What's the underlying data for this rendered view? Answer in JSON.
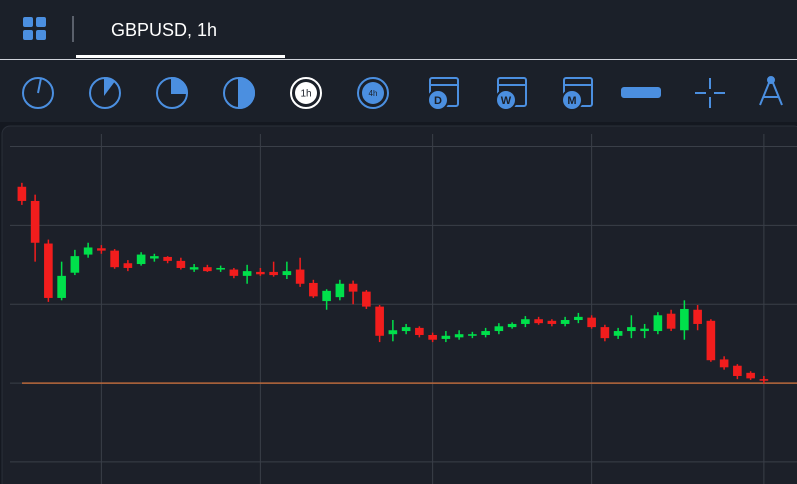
{
  "tab": {
    "title": "GBPUSD, 1h"
  },
  "toolbar": {
    "labels": [
      "1h",
      "4h",
      "D",
      "W",
      "M"
    ]
  },
  "chart_data": {
    "type": "candlestick",
    "up_color": "#00e04b",
    "down_color": "#f21d1d",
    "grid": true,
    "grid_color": "#3a3f48",
    "last_price": 1.25,
    "last_price_color": "#b8683c",
    "xlim": [
      -1.5,
      58.5
    ],
    "xticks": [
      6,
      18,
      31,
      43,
      56
    ],
    "ylim": [
      1.24872,
      1.25321
    ],
    "yticks": [
      1.249,
      1.25,
      1.251,
      1.252,
      1.253
    ],
    "open": [
      1.25249,
      1.25231,
      1.25177,
      1.25108,
      1.2514,
      1.25163,
      1.25171,
      1.25168,
      1.25152,
      1.25151,
      1.25158,
      1.2516,
      1.25155,
      1.25144,
      1.25147,
      1.25144,
      1.25144,
      1.25136,
      1.25141,
      1.25141,
      1.25137,
      1.25144,
      1.25127,
      1.25104,
      1.25109,
      1.25126,
      1.25116,
      1.25097,
      1.25062,
      1.25066,
      1.2507,
      1.25061,
      1.25056,
      1.25058,
      1.2506,
      1.25061,
      1.25066,
      1.25071,
      1.25075,
      1.25081,
      1.25079,
      1.25075,
      1.2508,
      1.25083,
      1.25071,
      1.2506,
      1.25066,
      1.25066,
      1.25066,
      1.25088,
      1.25067,
      1.25093,
      1.25079,
      1.2503,
      1.25022,
      1.25013,
      1.25005
    ],
    "high": [
      1.25254,
      1.25239,
      1.25182,
      1.25154,
      1.25169,
      1.25178,
      1.25175,
      1.2517,
      1.25156,
      1.25166,
      1.25164,
      1.25161,
      1.25159,
      1.25151,
      1.2515,
      1.25149,
      1.25146,
      1.2515,
      1.25146,
      1.25154,
      1.25154,
      1.25159,
      1.25131,
      1.25119,
      1.25131,
      1.2513,
      1.25118,
      1.25099,
      1.2508,
      1.25075,
      1.25072,
      1.25064,
      1.25066,
      1.25067,
      1.25065,
      1.2507,
      1.25076,
      1.25077,
      1.25085,
      1.25084,
      1.25081,
      1.25084,
      1.25089,
      1.25086,
      1.25074,
      1.2507,
      1.25086,
      1.25075,
      1.2509,
      1.25093,
      1.25105,
      1.25099,
      1.25081,
      1.25034,
      1.25024,
      1.25015,
      1.25009
    ],
    "low": [
      1.25226,
      1.25154,
      1.25103,
      1.25105,
      1.25137,
      1.25159,
      1.25164,
      1.25145,
      1.25142,
      1.25149,
      1.25154,
      1.25152,
      1.25144,
      1.25141,
      1.25141,
      1.25141,
      1.25133,
      1.25126,
      1.25136,
      1.25135,
      1.25132,
      1.25122,
      1.25108,
      1.25093,
      1.25105,
      1.251,
      1.25094,
      1.25052,
      1.25053,
      1.25062,
      1.25058,
      1.25052,
      1.25052,
      1.25055,
      1.25057,
      1.25058,
      1.25062,
      1.25069,
      1.25071,
      1.25074,
      1.25072,
      1.25072,
      1.25076,
      1.25069,
      1.25053,
      1.25056,
      1.25057,
      1.25057,
      1.25062,
      1.25066,
      1.25055,
      1.25067,
      1.25027,
      1.25017,
      1.25005,
      1.25004,
      1.24999
    ],
    "close": [
      1.25231,
      1.25178,
      1.25108,
      1.25136,
      1.25161,
      1.25172,
      1.25168,
      1.25147,
      1.25146,
      1.25163,
      1.25161,
      1.25155,
      1.25146,
      1.25147,
      1.25142,
      1.25146,
      1.25136,
      1.25142,
      1.25138,
      1.25137,
      1.25142,
      1.25126,
      1.2511,
      1.25117,
      1.25126,
      1.25116,
      1.25097,
      1.2506,
      1.25067,
      1.25071,
      1.25061,
      1.25055,
      1.2506,
      1.25062,
      1.25062,
      1.25066,
      1.25072,
      1.25075,
      1.25081,
      1.25076,
      1.25075,
      1.2508,
      1.25084,
      1.25071,
      1.25057,
      1.25066,
      1.25071,
      1.25069,
      1.25086,
      1.25069,
      1.25094,
      1.25075,
      1.25029,
      1.2502,
      1.25009,
      1.25006,
      1.25003
    ]
  }
}
